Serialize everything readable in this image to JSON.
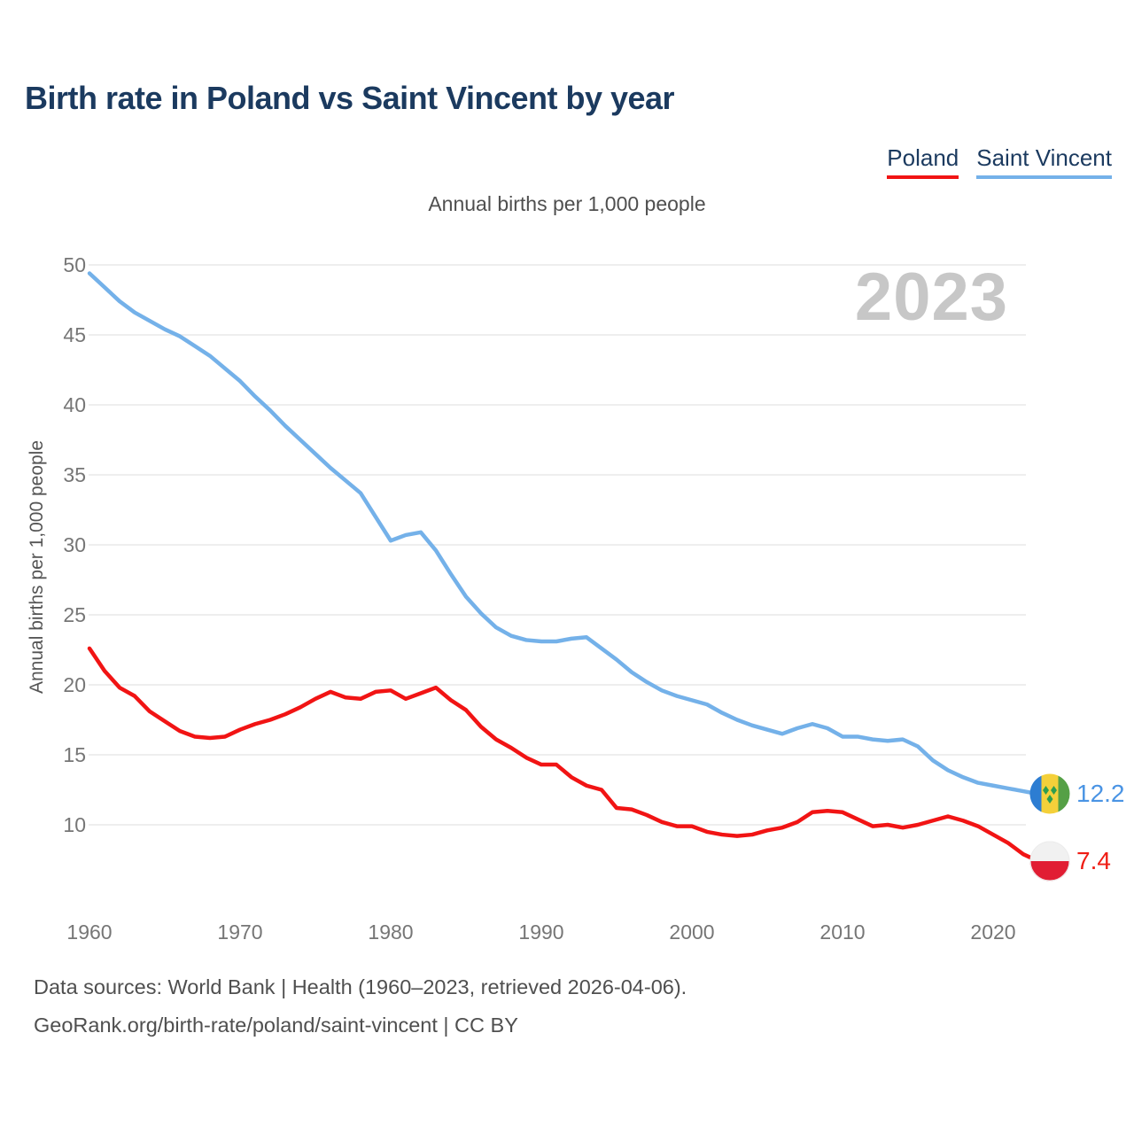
{
  "watermark": "2023",
  "footer": {
    "line1": "Data sources: World Bank | Health (1960–2023, retrieved 2026-04-06).",
    "line2": "GeoRank.org/birth-rate/poland/saint-vincent | CC BY"
  },
  "chart_data": {
    "type": "line",
    "title": "Birth rate in Poland vs Saint Vincent by year",
    "subtitle": "Annual births per 1,000 people",
    "ylabel": "Annual births per 1,000 people",
    "xlabel": "",
    "grid": true,
    "legend_position": "top-right",
    "ylim": [
      7,
      50
    ],
    "y_ticks": [
      50,
      45,
      40,
      35,
      30,
      25,
      20,
      15,
      10
    ],
    "x_ticks": [
      1960,
      1970,
      1980,
      1990,
      2000,
      2010,
      2020
    ],
    "x": [
      1960,
      1961,
      1962,
      1963,
      1964,
      1965,
      1966,
      1967,
      1968,
      1969,
      1970,
      1971,
      1972,
      1973,
      1974,
      1975,
      1976,
      1977,
      1978,
      1979,
      1980,
      1981,
      1982,
      1983,
      1984,
      1985,
      1986,
      1987,
      1988,
      1989,
      1990,
      1991,
      1992,
      1993,
      1994,
      1995,
      1996,
      1997,
      1998,
      1999,
      2000,
      2001,
      2002,
      2003,
      2004,
      2005,
      2006,
      2007,
      2008,
      2009,
      2010,
      2011,
      2012,
      2013,
      2014,
      2015,
      2016,
      2017,
      2018,
      2019,
      2020,
      2021,
      2022,
      2023
    ],
    "series": [
      {
        "name": "Poland",
        "color": "#f11414",
        "label_color": "#ef1d14",
        "end_label": "7.4",
        "values": [
          22.6,
          21.0,
          19.8,
          19.2,
          18.1,
          17.4,
          16.7,
          16.3,
          16.2,
          16.3,
          16.8,
          17.2,
          17.5,
          17.9,
          18.4,
          19.0,
          19.5,
          19.1,
          19.0,
          19.5,
          19.6,
          19.0,
          19.4,
          19.8,
          18.9,
          18.2,
          17.0,
          16.1,
          15.5,
          14.8,
          14.3,
          14.3,
          13.4,
          12.8,
          12.5,
          11.2,
          11.1,
          10.7,
          10.2,
          9.9,
          9.9,
          9.5,
          9.3,
          9.2,
          9.3,
          9.6,
          9.8,
          10.2,
          10.9,
          11.0,
          10.9,
          10.4,
          9.9,
          10.0,
          9.8,
          10.0,
          10.3,
          10.6,
          10.3,
          9.9,
          9.3,
          8.7,
          7.9,
          7.4
        ]
      },
      {
        "name": "Saint Vincent",
        "color": "#74b1e9",
        "label_color": "#4a94e4",
        "end_label": "12.2",
        "values": [
          49.4,
          48.4,
          47.4,
          46.6,
          46.0,
          45.4,
          44.9,
          44.2,
          43.5,
          42.6,
          41.7,
          40.6,
          39.6,
          38.5,
          37.5,
          36.5,
          35.5,
          34.6,
          33.7,
          32.0,
          30.3,
          30.7,
          30.9,
          29.6,
          27.9,
          26.3,
          25.1,
          24.1,
          23.5,
          23.2,
          23.1,
          23.1,
          23.3,
          23.4,
          22.6,
          21.8,
          20.9,
          20.2,
          19.6,
          19.2,
          18.9,
          18.6,
          18.0,
          17.5,
          17.1,
          16.8,
          16.5,
          16.9,
          17.2,
          16.9,
          16.3,
          16.3,
          16.1,
          16.0,
          16.1,
          15.6,
          14.6,
          13.9,
          13.4,
          13.0,
          12.8,
          12.6,
          12.4,
          12.2
        ]
      }
    ]
  }
}
